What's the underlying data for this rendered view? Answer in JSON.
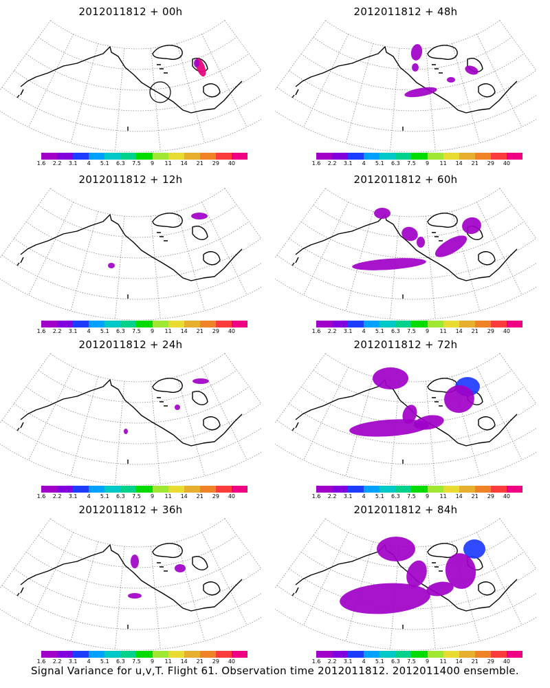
{
  "caption": "Signal Variance for u,v,T. Flight 61. Observation time 2012011812. 2012011400 ensemble.",
  "colorbar": {
    "colors": [
      "#a000c8",
      "#8200dc",
      "#1e3cff",
      "#00a0ff",
      "#00c8c8",
      "#00d28c",
      "#00dc00",
      "#a0e632",
      "#e6dc32",
      "#e6af2d",
      "#f08228",
      "#fa3c3c",
      "#f00082"
    ],
    "ticks": [
      "1.6",
      "2.2",
      "3.1",
      "4",
      "5.1",
      "6.3",
      "7.5",
      "9",
      "11",
      "14",
      "21",
      "29",
      "40"
    ]
  },
  "panels": [
    {
      "title": "2012011812 + 00h"
    },
    {
      "title": "2012011812 + 48h"
    },
    {
      "title": "2012011812 + 12h"
    },
    {
      "title": "2012011812 + 60h"
    },
    {
      "title": "2012011812 + 24h"
    },
    {
      "title": "2012011812 + 72h"
    },
    {
      "title": "2012011812 + 36h"
    },
    {
      "title": "2012011812 + 84h"
    }
  ]
}
